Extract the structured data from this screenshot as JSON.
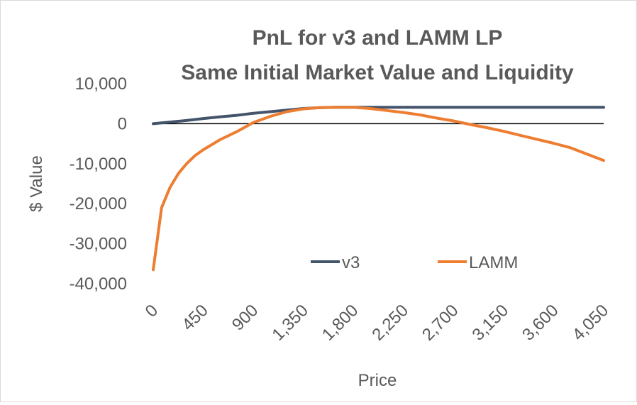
{
  "chart_data": {
    "type": "line",
    "title": "PnL for v3 and LAMM LP",
    "subtitle": "Same Initial Market Value and Liquidity",
    "xlabel": "Price",
    "ylabel": "$ Value",
    "ylim": [
      -40000,
      10000
    ],
    "yticks": [
      10000,
      0,
      -10000,
      -20000,
      -30000,
      -40000
    ],
    "ytick_labels": [
      "10,000",
      "0",
      "-10,000",
      "-20,000",
      "-30,000",
      "-40,000"
    ],
    "xlim": [
      0,
      4050
    ],
    "xticks": [
      0,
      450,
      900,
      1350,
      1800,
      2250,
      2700,
      3150,
      3600,
      4050
    ],
    "xtick_labels": [
      "0",
      "450",
      "900",
      "1,350",
      "1,800",
      "2,250",
      "2,700",
      "3,150",
      "3,600",
      "4,050"
    ],
    "legend_position": "bottom-right",
    "series": [
      {
        "name": "v3",
        "color": "#44546a",
        "x": [
          0,
          150,
          300,
          450,
          600,
          750,
          900,
          1050,
          1200,
          1350,
          1500,
          1650,
          1800,
          1950,
          2100,
          2250,
          2400,
          2550,
          2700,
          2850,
          3000,
          3150,
          3300,
          3450,
          3600,
          3750,
          3900,
          4050
        ],
        "y": [
          0,
          400,
          800,
          1300,
          1700,
          2100,
          2600,
          3000,
          3400,
          3800,
          4000,
          4100,
          4100,
          4100,
          4100,
          4100,
          4100,
          4100,
          4100,
          4100,
          4100,
          4100,
          4100,
          4100,
          4100,
          4100,
          4100,
          4100
        ]
      },
      {
        "name": "LAMM",
        "color": "#ed7d31",
        "x": [
          0,
          75,
          150,
          225,
          300,
          375,
          450,
          600,
          750,
          900,
          1050,
          1200,
          1350,
          1500,
          1650,
          1800,
          1950,
          2100,
          2250,
          2400,
          2550,
          2700,
          2850,
          3000,
          3150,
          3300,
          3450,
          3600,
          3750,
          3900,
          4050
        ],
        "y": [
          -36500,
          -21000,
          -16000,
          -12500,
          -10000,
          -8000,
          -6500,
          -4000,
          -2000,
          300,
          1800,
          3000,
          3700,
          4000,
          4100,
          4100,
          3800,
          3300,
          2800,
          2200,
          1400,
          700,
          -200,
          -1000,
          -1900,
          -2900,
          -3900,
          -4900,
          -6000,
          -7600,
          -9200
        ]
      }
    ]
  }
}
